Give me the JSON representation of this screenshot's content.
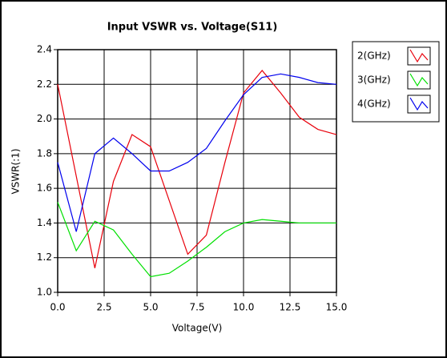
{
  "chart_data": {
    "type": "line",
    "title": "Input VSWR vs. Voltage(S11)",
    "x_label": "Voltage(V)",
    "y_label": "VSWR(:1)",
    "x": [
      0,
      1,
      2,
      3,
      4,
      5,
      6,
      7,
      8,
      9,
      10,
      11,
      12,
      13,
      14,
      15
    ],
    "series": [
      {
        "name": "2(GHz)",
        "color": "#e8000b",
        "values": [
          2.2,
          1.67,
          1.14,
          1.64,
          1.91,
          1.84,
          1.53,
          1.22,
          1.33,
          1.75,
          2.15,
          2.28,
          2.15,
          2.01,
          1.94,
          1.91
        ]
      },
      {
        "name": "3(GHz)",
        "color": "#00e000",
        "values": [
          1.52,
          1.24,
          1.41,
          1.36,
          1.22,
          1.09,
          1.11,
          1.18,
          1.26,
          1.35,
          1.4,
          1.42,
          1.41,
          1.4,
          1.4,
          1.4
        ]
      },
      {
        "name": "4(GHz)",
        "color": "#0000ee",
        "values": [
          1.75,
          1.35,
          1.8,
          1.89,
          1.8,
          1.7,
          1.7,
          1.75,
          1.83,
          1.99,
          2.14,
          2.24,
          2.26,
          2.24,
          2.21,
          2.2
        ]
      }
    ],
    "xlim": [
      0,
      15
    ],
    "xticks": [
      {
        "value": 0,
        "label": "0.0"
      },
      2.5,
      {
        "value": 5,
        "label": "5.0"
      },
      7.5,
      {
        "value": 10,
        "label": "10.0"
      },
      12.5,
      {
        "value": 15,
        "label": "15.0"
      }
    ],
    "ylim": [
      1,
      2.4
    ],
    "yticks": [
      {
        "value": 1,
        "label": "1.0"
      },
      1.2,
      1.4,
      1.6,
      1.8,
      {
        "value": 2,
        "label": "2.0"
      },
      2.2,
      2.4
    ],
    "grid": true,
    "legend": "right"
  }
}
